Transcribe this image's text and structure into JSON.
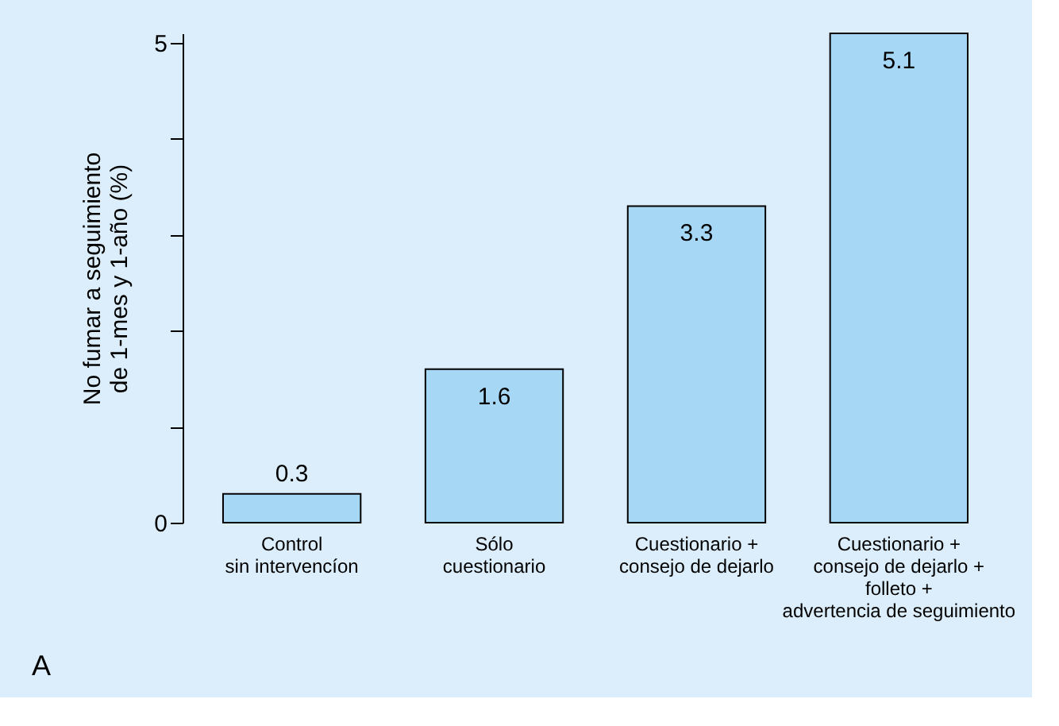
{
  "chart_data": {
    "type": "bar",
    "categories": [
      "Control\nsin intervencíon",
      "Sólo\ncuestionario",
      "Cuestionario +\nconsejo de dejarlo",
      "Cuestionario +\nconsejo de dejarlo +\nfolleto +\nadvertencia de seguimiento"
    ],
    "values": [
      0.3,
      1.6,
      3.3,
      5.1
    ],
    "color": "#a6d8f5",
    "ylabel": "No fumar a seguimiento\nde 1-mes y 1-año (%)",
    "ylim": [
      0,
      5.1
    ],
    "yticks": [
      0,
      {
        "value": 1,
        "label": null
      },
      {
        "value": 2,
        "label": null
      },
      {
        "value": 3,
        "label": null
      },
      {
        "value": 4,
        "label": null
      },
      5
    ],
    "data_labels": true,
    "grid": false,
    "annotations": [
      "A"
    ]
  }
}
